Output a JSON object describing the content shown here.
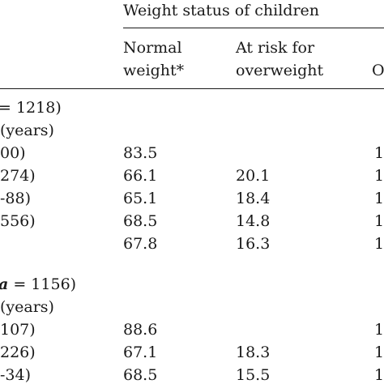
{
  "header": {
    "group_title": "Weight status of children",
    "col_normal_line1": "Normal",
    "col_normal_line2": "weight*",
    "col_risk_line1": "At risk for",
    "col_risk_line2": "overweight",
    "col_cut": "O"
  },
  "section1": {
    "title_prefix": "= 1218)",
    "subtitle": "(years)",
    "rows": [
      {
        "label": "00)",
        "normal": "83.5",
        "risk": "",
        "cut": "1"
      },
      {
        "label": "274)",
        "normal": "66.1",
        "risk": "20.1",
        "cut": "1"
      },
      {
        "label": "-88)",
        "normal": "65.1",
        "risk": "18.4",
        "cut": "1"
      },
      {
        "label": "556)",
        "normal": "68.5",
        "risk": "14.8",
        "cut": "1"
      },
      {
        "label": "",
        "normal": "67.8",
        "risk": "16.3",
        "cut": "1"
      }
    ]
  },
  "section2": {
    "title_italic": "a",
    "title_rest": " = 1156)",
    "subtitle": "(years)",
    "rows": [
      {
        "label": "107)",
        "normal": "88.6",
        "risk": "",
        "cut": "1"
      },
      {
        "label": "226)",
        "normal": "67.1",
        "risk": "18.3",
        "cut": "1"
      },
      {
        "label": "-34)",
        "normal": "68.5",
        "risk": "15.5",
        "cut": "1"
      }
    ]
  }
}
